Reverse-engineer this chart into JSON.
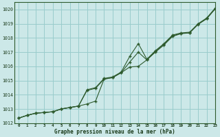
{
  "title": "Graphe pression niveau de la mer (hPa)",
  "xlim": [
    -0.5,
    23
  ],
  "ylim": [
    1012,
    1020.5
  ],
  "xticks": [
    0,
    1,
    2,
    3,
    4,
    5,
    6,
    7,
    8,
    9,
    10,
    11,
    12,
    13,
    14,
    15,
    16,
    17,
    18,
    19,
    20,
    21,
    22,
    23
  ],
  "yticks": [
    1012,
    1013,
    1014,
    1015,
    1016,
    1017,
    1018,
    1019,
    1020
  ],
  "bg_color": "#cce8e8",
  "grid_color": "#99cccc",
  "line_color": "#2d5a2d",
  "marker_color": "#2d5a2d",
  "series": [
    [
      1012.35,
      1012.55,
      1012.7,
      1012.75,
      1012.8,
      1013.0,
      1013.1,
      1013.2,
      1013.35,
      1013.55,
      1015.1,
      1015.2,
      1015.55,
      1015.95,
      1016.0,
      1016.45,
      1017.0,
      1017.5,
      1018.1,
      1018.3,
      1018.35,
      1018.95,
      1019.35,
      1020.05
    ],
    [
      1012.35,
      1012.55,
      1012.7,
      1012.75,
      1012.8,
      1013.0,
      1013.1,
      1013.2,
      1014.3,
      1014.45,
      1015.1,
      1015.22,
      1015.55,
      1016.3,
      1017.0,
      1016.45,
      1017.05,
      1017.55,
      1018.15,
      1018.32,
      1018.35,
      1018.97,
      1019.35,
      1020.05
    ],
    [
      1012.35,
      1012.55,
      1012.7,
      1012.75,
      1012.8,
      1013.0,
      1013.1,
      1013.2,
      1014.35,
      1014.5,
      1015.15,
      1015.25,
      1015.6,
      1016.7,
      1017.6,
      1016.5,
      1017.1,
      1017.6,
      1018.2,
      1018.35,
      1018.4,
      1019.0,
      1019.4,
      1020.1
    ]
  ]
}
